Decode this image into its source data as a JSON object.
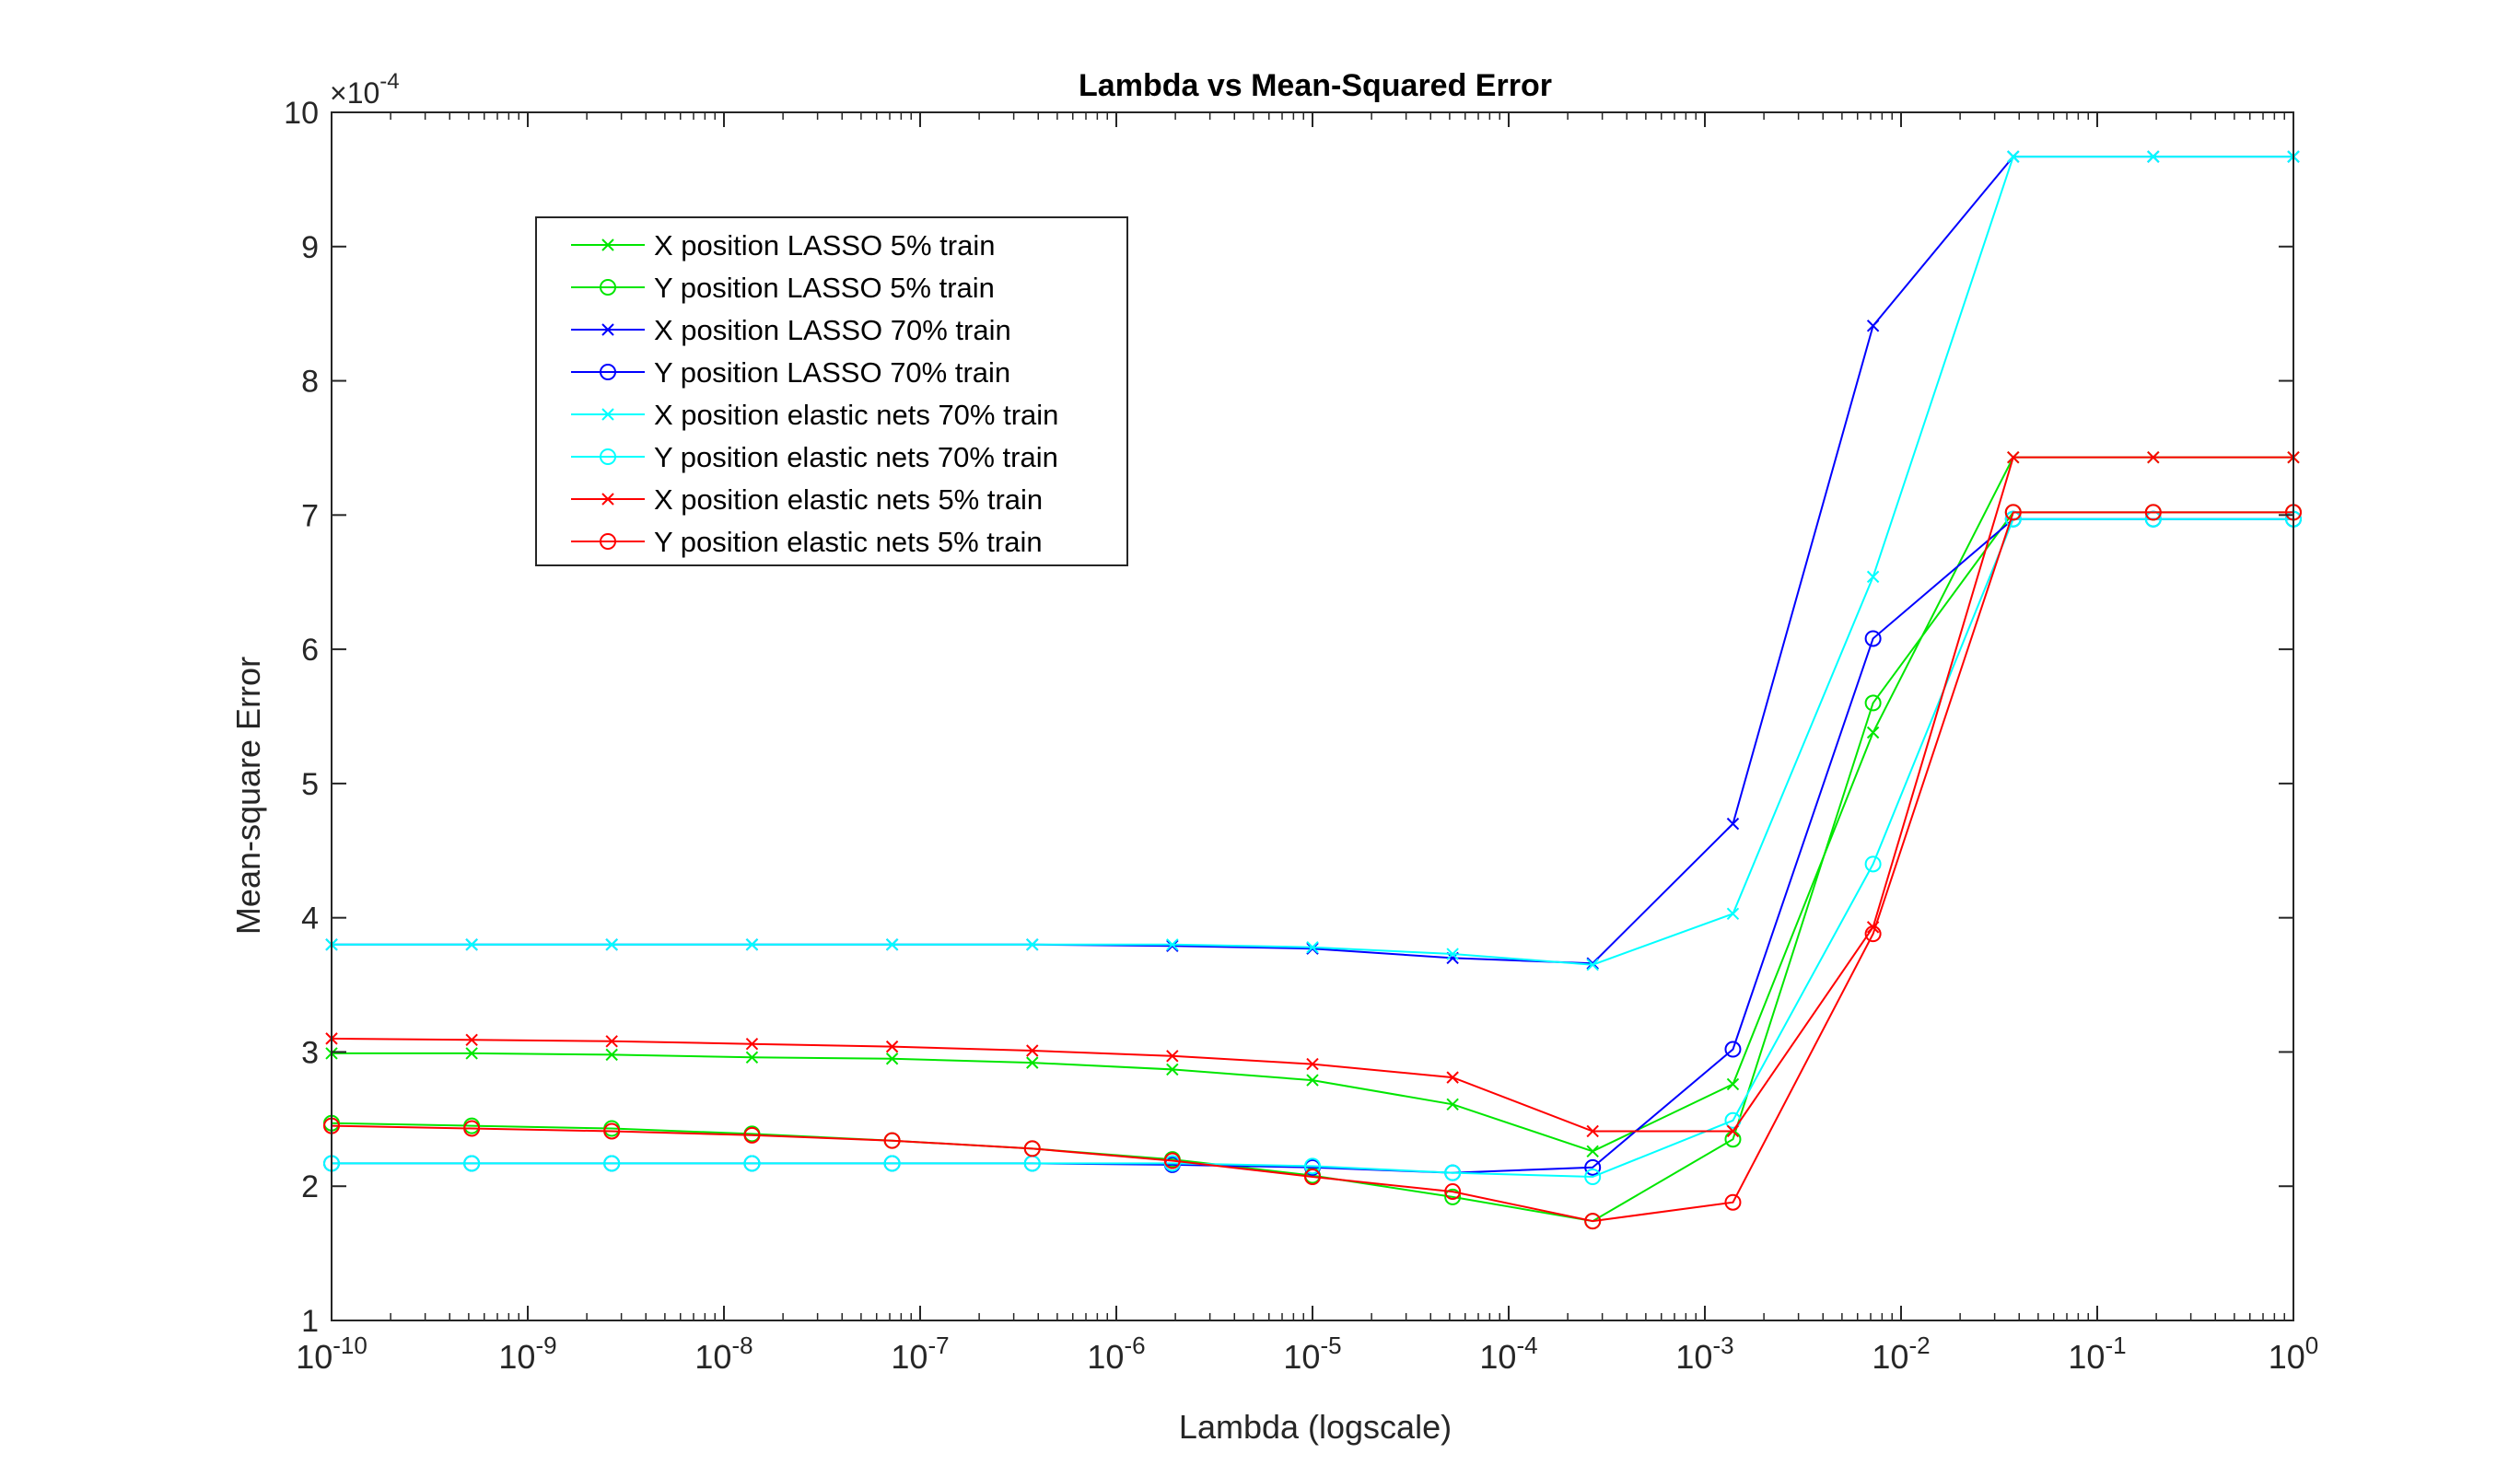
{
  "chart_data": {
    "type": "line",
    "title": "Lambda vs Mean-Squared Error",
    "xlabel": "Lambda (logscale)",
    "ylabel": "Mean-square Error",
    "x_scale": "log",
    "xlim": [
      1e-10,
      1
    ],
    "ylim": [
      1,
      10
    ],
    "y_multiplier": "×10^-4",
    "y_multiplier_parts": {
      "base": "×10",
      "exp": "-4"
    },
    "x_ticks": [
      {
        "base": "10",
        "exp": "-10",
        "value": 1e-10
      },
      {
        "base": "10",
        "exp": "-9",
        "value": 1e-09
      },
      {
        "base": "10",
        "exp": "-8",
        "value": 1e-08
      },
      {
        "base": "10",
        "exp": "-7",
        "value": 1e-07
      },
      {
        "base": "10",
        "exp": "-6",
        "value": 1e-06
      },
      {
        "base": "10",
        "exp": "-5",
        "value": 1e-05
      },
      {
        "base": "10",
        "exp": "-4",
        "value": 0.0001
      },
      {
        "base": "10",
        "exp": "-3",
        "value": 0.001
      },
      {
        "base": "10",
        "exp": "-2",
        "value": 0.01
      },
      {
        "base": "10",
        "exp": "-1",
        "value": 0.1
      },
      {
        "base": "10",
        "exp": "0",
        "value": 1
      }
    ],
    "y_ticks": [
      "1",
      "2",
      "3",
      "4",
      "5",
      "6",
      "7",
      "8",
      "9",
      "10"
    ],
    "grid": false,
    "legend_position": "top-left",
    "x": [
      1e-10,
      5.18e-10,
      2.68e-09,
      1.39e-08,
      7.2e-08,
      3.73e-07,
      1.93e-06,
      1e-05,
      5.18e-05,
      0.000268,
      0.00139,
      0.0072,
      0.0373,
      0.193,
      1
    ],
    "series": [
      {
        "name": "X position LASSO 5% train",
        "color": "#00e600",
        "marker": "x",
        "values": [
          2.99,
          2.99,
          2.98,
          2.96,
          2.95,
          2.92,
          2.87,
          2.79,
          2.61,
          2.26,
          2.76,
          5.38,
          7.43,
          7.43,
          7.43
        ]
      },
      {
        "name": "Y position LASSO 5% train",
        "color": "#00e600",
        "marker": "o",
        "values": [
          2.47,
          2.45,
          2.43,
          2.39,
          2.34,
          2.28,
          2.2,
          2.08,
          1.92,
          1.74,
          2.35,
          5.6,
          7.02,
          7.02,
          7.02
        ]
      },
      {
        "name": "X position LASSO 70% train",
        "color": "#0000ff",
        "marker": "x",
        "values": [
          3.8,
          3.8,
          3.8,
          3.8,
          3.8,
          3.8,
          3.79,
          3.77,
          3.7,
          3.66,
          4.7,
          8.41,
          9.67,
          9.67,
          9.67
        ]
      },
      {
        "name": "Y position LASSO 70% train",
        "color": "#0000ff",
        "marker": "o",
        "values": [
          2.17,
          2.17,
          2.17,
          2.17,
          2.17,
          2.17,
          2.16,
          2.14,
          2.1,
          2.14,
          3.02,
          6.08,
          6.97,
          6.97,
          6.97
        ]
      },
      {
        "name": "X position elastic nets 70% train",
        "color": "#00ffff",
        "marker": "x",
        "values": [
          3.8,
          3.8,
          3.8,
          3.8,
          3.8,
          3.8,
          3.8,
          3.78,
          3.73,
          3.65,
          4.03,
          6.54,
          9.67,
          9.67,
          9.67
        ]
      },
      {
        "name": "Y position elastic nets 70% train",
        "color": "#00ffff",
        "marker": "o",
        "values": [
          2.17,
          2.17,
          2.17,
          2.17,
          2.17,
          2.17,
          2.17,
          2.15,
          2.1,
          2.07,
          2.49,
          4.4,
          6.97,
          6.97,
          6.97
        ]
      },
      {
        "name": "X position elastic nets 5% train",
        "color": "#ff0000",
        "marker": "x",
        "values": [
          3.1,
          3.09,
          3.08,
          3.06,
          3.04,
          3.01,
          2.97,
          2.91,
          2.81,
          2.41,
          2.41,
          3.93,
          7.43,
          7.43,
          7.43
        ]
      },
      {
        "name": "Y position elastic nets 5% train",
        "color": "#ff0000",
        "marker": "o",
        "values": [
          2.45,
          2.43,
          2.41,
          2.38,
          2.34,
          2.28,
          2.19,
          2.07,
          1.96,
          1.74,
          1.88,
          3.88,
          7.02,
          7.02,
          7.02
        ]
      }
    ]
  }
}
